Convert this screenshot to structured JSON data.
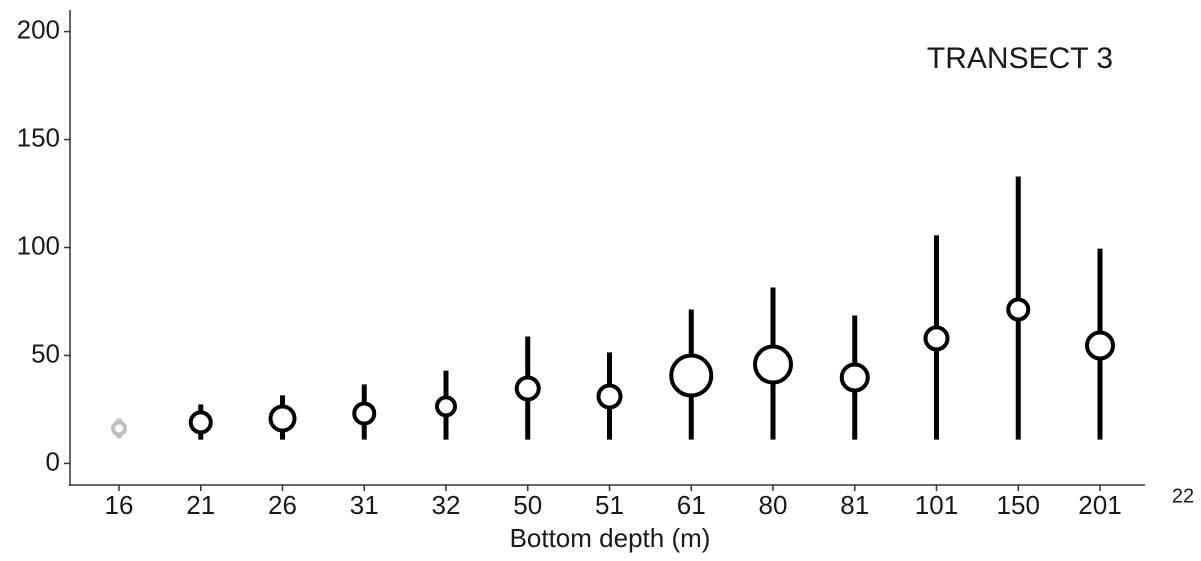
{
  "chart_data": {
    "type": "errorbar",
    "title": "TRANSECT 3",
    "x_label": "Bottom depth (m)",
    "page_number": "22",
    "categories": [
      "16",
      "21",
      "26",
      "31",
      "32",
      "50",
      "51",
      "61",
      "80",
      "81",
      "101",
      "150",
      "201"
    ],
    "values": [
      16.2,
      19,
      20.8,
      23.1,
      26.4,
      34.7,
      31,
      40.7,
      45.8,
      39.8,
      57.9,
      71.3,
      54.6
    ],
    "lower": [
      11.6,
      11,
      11,
      11,
      11,
      11,
      11,
      11,
      11,
      11,
      11,
      11,
      11
    ],
    "upper": [
      20.8,
      27.3,
      31.5,
      36.6,
      43,
      58.8,
      51.4,
      71.3,
      81.5,
      68.5,
      105.6,
      132.9,
      99.5
    ],
    "sizes": [
      6,
      10,
      12,
      10,
      9,
      11,
      11,
      20,
      18,
      13,
      11,
      10,
      13
    ],
    "colors": [
      "#bfbfbf",
      "#000000",
      "#000000",
      "#000000",
      "#000000",
      "#000000",
      "#000000",
      "#000000",
      "#000000",
      "#000000",
      "#000000",
      "#000000",
      "#000000"
    ],
    "ylim": [
      -10,
      210
    ],
    "yticks": [
      0,
      50,
      100,
      150,
      200
    ]
  }
}
